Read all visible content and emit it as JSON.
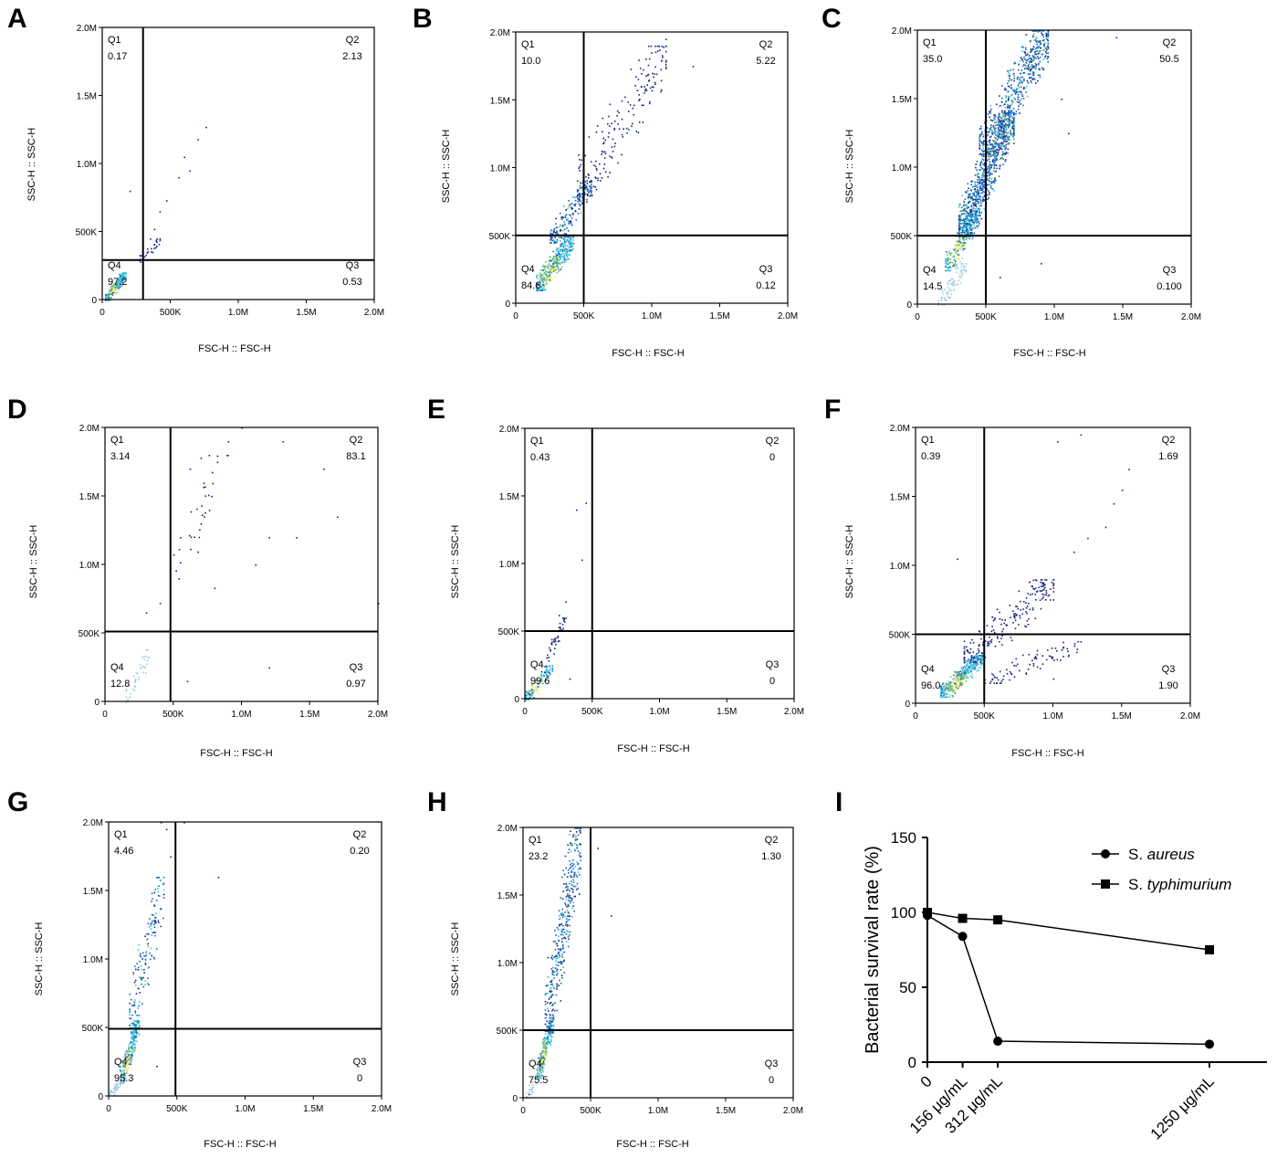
{
  "chart_data": [
    {
      "id": "A",
      "type": "scatter",
      "panel_label": "A",
      "xlabel": "FSC-H :: FSC-H",
      "ylabel": "SSC-H :: SSC-H",
      "xlim": [
        0,
        2000000
      ],
      "ylim": [
        0,
        2000000
      ],
      "x_ticks": [
        0,
        500000,
        1000000,
        1500000,
        2000000
      ],
      "x_tick_labels": [
        "0",
        "500K",
        "1.0M",
        "1.5M",
        "2.0M"
      ],
      "y_ticks": [
        0,
        500000,
        1000000,
        1500000,
        2000000
      ],
      "y_tick_labels": [
        "0",
        "500K",
        "1.0M",
        "1.5M",
        "2.0M"
      ],
      "gate": {
        "x": 300000,
        "y": 290000
      },
      "quadrants": [
        {
          "name": "Q1",
          "value": "0.17",
          "pos": "top-left"
        },
        {
          "name": "Q2",
          "value": "2.13",
          "pos": "top-right"
        },
        {
          "name": "Q3",
          "value": "0.53",
          "pos": "bottom-right"
        },
        {
          "name": "Q4",
          "value": "97.2",
          "pos": "bottom-left"
        }
      ],
      "sparse_points": [
        [
          200000,
          800000
        ],
        [
          420000,
          650000
        ],
        [
          470000,
          730000
        ],
        [
          560000,
          900000
        ],
        [
          600000,
          1050000
        ],
        [
          640000,
          950000
        ],
        [
          700000,
          1180000
        ],
        [
          760000,
          1270000
        ],
        [
          380000,
          520000
        ],
        [
          350000,
          450000
        ]
      ],
      "clusters": [
        {
          "x": [
            20000,
            170000
          ],
          "y": [
            0,
            200000
          ],
          "n": 220,
          "tone": "dense"
        },
        {
          "x": [
            260000,
            420000
          ],
          "y": [
            280000,
            450000
          ],
          "n": 25,
          "tone": "sparse"
        }
      ]
    },
    {
      "id": "B",
      "type": "scatter",
      "panel_label": "B",
      "xlabel": "FSC-H :: FSC-H",
      "ylabel": "SSC-H :: SSC-H",
      "xlim": [
        0,
        2000000
      ],
      "ylim": [
        0,
        2000000
      ],
      "x_ticks": [
        0,
        500000,
        1000000,
        1500000,
        2000000
      ],
      "x_tick_labels": [
        "0",
        "500K",
        "1.0M",
        "1.5M",
        "2.0M"
      ],
      "y_ticks": [
        0,
        500000,
        1000000,
        1500000,
        2000000
      ],
      "y_tick_labels": [
        "0",
        "500K",
        "1.0M",
        "1.5M",
        "2.0M"
      ],
      "gate": {
        "x": 500000,
        "y": 500000
      },
      "quadrants": [
        {
          "name": "Q1",
          "value": "10.0",
          "pos": "top-left"
        },
        {
          "name": "Q2",
          "value": "5.22",
          "pos": "top-right"
        },
        {
          "name": "Q3",
          "value": "0.12",
          "pos": "bottom-right"
        },
        {
          "name": "Q4",
          "value": "84.6",
          "pos": "bottom-left"
        }
      ],
      "sparse_points": [
        [
          1100000,
          1950000
        ],
        [
          1300000,
          1750000
        ],
        [
          1050000,
          1900000
        ],
        [
          900000,
          1500000
        ],
        [
          1000000,
          1700000
        ]
      ],
      "clusters": [
        {
          "x": [
            150000,
            420000
          ],
          "y": [
            100000,
            500000
          ],
          "n": 420,
          "tone": "dense"
        },
        {
          "x": [
            250000,
            550000
          ],
          "y": [
            450000,
            900000
          ],
          "n": 200,
          "tone": "mid"
        },
        {
          "x": [
            450000,
            1100000
          ],
          "y": [
            800000,
            1900000
          ],
          "n": 180,
          "tone": "sparse"
        }
      ]
    },
    {
      "id": "C",
      "type": "scatter",
      "panel_label": "C",
      "xlabel": "FSC-H :: FSC-H",
      "ylabel": "SSC-H :: SSC-H",
      "xlim": [
        0,
        2000000
      ],
      "ylim": [
        0,
        2000000
      ],
      "x_ticks": [
        0,
        500000,
        1000000,
        1500000,
        2000000
      ],
      "x_tick_labels": [
        "0",
        "500K",
        "1.0M",
        "1.5M",
        "2.0M"
      ],
      "y_ticks": [
        0,
        500000,
        1000000,
        1500000,
        2000000
      ],
      "y_tick_labels": [
        "0",
        "500K",
        "1.0M",
        "1.5M",
        "2.0M"
      ],
      "gate": {
        "x": 500000,
        "y": 500000
      },
      "quadrants": [
        {
          "name": "Q1",
          "value": "35.0",
          "pos": "top-left"
        },
        {
          "name": "Q2",
          "value": "50.5",
          "pos": "top-right"
        },
        {
          "name": "Q3",
          "value": "0.100",
          "pos": "bottom-right"
        },
        {
          "name": "Q4",
          "value": "14.5",
          "pos": "bottom-left"
        }
      ],
      "sparse_points": [
        [
          1450000,
          1950000
        ],
        [
          1050000,
          1500000
        ],
        [
          1100000,
          1250000
        ],
        [
          600000,
          200000
        ],
        [
          900000,
          300000
        ]
      ],
      "clusters": [
        {
          "x": [
            200000,
            450000
          ],
          "y": [
            250000,
            700000
          ],
          "n": 300,
          "tone": "dense"
        },
        {
          "x": [
            300000,
            700000
          ],
          "y": [
            500000,
            1400000
          ],
          "n": 800,
          "tone": "mid"
        },
        {
          "x": [
            450000,
            950000
          ],
          "y": [
            1100000,
            2000000
          ],
          "n": 600,
          "tone": "mid"
        },
        {
          "x": [
            150000,
            350000
          ],
          "y": [
            0,
            300000
          ],
          "n": 80,
          "tone": "light"
        }
      ]
    },
    {
      "id": "D",
      "type": "scatter",
      "panel_label": "D",
      "xlabel": "FSC-H :: FSC-H",
      "ylabel": "SSC-H :: SSC-H",
      "xlim": [
        0,
        2000000
      ],
      "ylim": [
        0,
        2000000
      ],
      "x_ticks": [
        0,
        500000,
        1000000,
        1500000,
        2000000
      ],
      "x_tick_labels": [
        "0",
        "500K",
        "1.0M",
        "1.5M",
        "2.0M"
      ],
      "y_ticks": [
        0,
        500000,
        1000000,
        1500000,
        2000000
      ],
      "y_tick_labels": [
        "0",
        "500K",
        "1.0M",
        "1.5M",
        "2.0M"
      ],
      "gate": {
        "x": 480000,
        "y": 510000
      },
      "quadrants": [
        {
          "name": "Q1",
          "value": "3.14",
          "pos": "top-left"
        },
        {
          "name": "Q2",
          "value": "83.1",
          "pos": "top-right"
        },
        {
          "name": "Q3",
          "value": "0.97",
          "pos": "bottom-right"
        },
        {
          "name": "Q4",
          "value": "12.8",
          "pos": "bottom-left"
        }
      ],
      "sparse_points": [
        [
          620000,
          1700000
        ],
        [
          700000,
          1780000
        ],
        [
          760000,
          1800000
        ],
        [
          820000,
          1750000
        ],
        [
          900000,
          1900000
        ],
        [
          1000000,
          2000000
        ],
        [
          1300000,
          1900000
        ],
        [
          1600000,
          1700000
        ],
        [
          1200000,
          1200000
        ],
        [
          800000,
          830000
        ],
        [
          1100000,
          1000000
        ],
        [
          2000000,
          720000
        ],
        [
          1200000,
          250000
        ],
        [
          600000,
          150000
        ],
        [
          400000,
          720000
        ],
        [
          300000,
          650000
        ],
        [
          550000,
          1200000
        ],
        [
          700000,
          1300000
        ],
        [
          1400000,
          1200000
        ],
        [
          1700000,
          1350000
        ]
      ],
      "clusters": [
        {
          "x": [
            150000,
            330000
          ],
          "y": [
            0,
            380000
          ],
          "n": 40,
          "tone": "light"
        },
        {
          "x": [
            500000,
            900000
          ],
          "y": [
            900000,
            1800000
          ],
          "n": 30,
          "tone": "sparse"
        }
      ]
    },
    {
      "id": "E",
      "type": "scatter",
      "panel_label": "E",
      "xlabel": "FSC-H :: FSC-H",
      "ylabel": "SSC-H :: SSC-H",
      "xlim": [
        0,
        2000000
      ],
      "ylim": [
        0,
        2000000
      ],
      "x_ticks": [
        0,
        500000,
        1000000,
        1500000,
        2000000
      ],
      "x_tick_labels": [
        "0",
        "500K",
        "1.0M",
        "1.5M",
        "2.0M"
      ],
      "y_ticks": [
        0,
        500000,
        1000000,
        1500000,
        2000000
      ],
      "y_tick_labels": [
        "0",
        "500K",
        "1.0M",
        "1.5M",
        "2.0M"
      ],
      "gate": {
        "x": 500000,
        "y": 500000
      },
      "quadrants": [
        {
          "name": "Q1",
          "value": "0.43",
          "pos": "top-left"
        },
        {
          "name": "Q2",
          "value": "0",
          "pos": "top-right"
        },
        {
          "name": "Q3",
          "value": "0",
          "pos": "bottom-right"
        },
        {
          "name": "Q4",
          "value": "99.6",
          "pos": "bottom-left"
        }
      ],
      "sparse_points": [
        [
          450000,
          1450000
        ],
        [
          380000,
          1400000
        ],
        [
          420000,
          1030000
        ],
        [
          300000,
          720000
        ],
        [
          250000,
          620000
        ],
        [
          330000,
          150000
        ]
      ],
      "clusters": [
        {
          "x": [
            0,
            200000
          ],
          "y": [
            0,
            250000
          ],
          "n": 120,
          "tone": "dense"
        },
        {
          "x": [
            120000,
            300000
          ],
          "y": [
            200000,
            600000
          ],
          "n": 40,
          "tone": "sparse"
        }
      ]
    },
    {
      "id": "F",
      "type": "scatter",
      "panel_label": "F",
      "xlabel": "FSC-H :: FSC-H",
      "ylabel": "SSC-H :: SSC-H",
      "xlim": [
        0,
        2000000
      ],
      "ylim": [
        0,
        2000000
      ],
      "x_ticks": [
        0,
        500000,
        1000000,
        1500000,
        2000000
      ],
      "x_tick_labels": [
        "0",
        "500K",
        "1.0M",
        "1.5M",
        "2.0M"
      ],
      "y_ticks": [
        0,
        500000,
        1000000,
        1500000,
        2000000
      ],
      "y_tick_labels": [
        "0",
        "500K",
        "1.0M",
        "1.5M",
        "2.0M"
      ],
      "gate": {
        "x": 500000,
        "y": 500000
      },
      "quadrants": [
        {
          "name": "Q1",
          "value": "0.39",
          "pos": "top-left"
        },
        {
          "name": "Q2",
          "value": "1.69",
          "pos": "top-right"
        },
        {
          "name": "Q3",
          "value": "1.90",
          "pos": "bottom-right"
        },
        {
          "name": "Q4",
          "value": "96.0",
          "pos": "bottom-left"
        }
      ],
      "sparse_points": [
        [
          1550000,
          1700000
        ],
        [
          1500000,
          1550000
        ],
        [
          1440000,
          1450000
        ],
        [
          1380000,
          1280000
        ],
        [
          1250000,
          1200000
        ],
        [
          1150000,
          1100000
        ],
        [
          1030000,
          1900000
        ],
        [
          1200000,
          1950000
        ],
        [
          300000,
          1050000
        ],
        [
          700000,
          300000
        ],
        [
          1000000,
          180000
        ],
        [
          1100000,
          400000
        ]
      ],
      "clusters": [
        {
          "x": [
            180000,
            480000
          ],
          "y": [
            50000,
            350000
          ],
          "n": 450,
          "tone": "dense"
        },
        {
          "x": [
            350000,
            1000000
          ],
          "y": [
            300000,
            900000
          ],
          "n": 200,
          "tone": "sparse"
        },
        {
          "x": [
            500000,
            1200000
          ],
          "y": [
            150000,
            450000
          ],
          "n": 80,
          "tone": "sparse"
        }
      ]
    },
    {
      "id": "G",
      "type": "scatter",
      "panel_label": "G",
      "xlabel": "FSC-H :: FSC-H",
      "ylabel": "SSC-H :: SSC-H",
      "xlim": [
        0,
        2000000
      ],
      "ylim": [
        0,
        2000000
      ],
      "x_ticks": [
        0,
        500000,
        1000000,
        1500000,
        2000000
      ],
      "x_tick_labels": [
        "0",
        "500K",
        "1.0M",
        "1.5M",
        "2.0M"
      ],
      "y_ticks": [
        0,
        500000,
        1000000,
        1500000,
        2000000
      ],
      "y_tick_labels": [
        "0",
        "500K",
        "1.0M",
        "1.5M",
        "2.0M"
      ],
      "gate": {
        "x": 490000,
        "y": 490000
      },
      "quadrants": [
        {
          "name": "Q1",
          "value": "4.46",
          "pos": "top-left"
        },
        {
          "name": "Q2",
          "value": "0.20",
          "pos": "top-right"
        },
        {
          "name": "Q3",
          "value": "0",
          "pos": "bottom-right"
        },
        {
          "name": "Q4",
          "value": "95.3",
          "pos": "bottom-left"
        }
      ],
      "sparse_points": [
        [
          550000,
          2000000
        ],
        [
          800000,
          1600000
        ],
        [
          450000,
          1750000
        ],
        [
          380000,
          2000000
        ],
        [
          420000,
          1950000
        ],
        [
          350000,
          220000
        ]
      ],
      "clusters": [
        {
          "x": [
            80000,
            220000
          ],
          "y": [
            100000,
            550000
          ],
          "n": 250,
          "tone": "dense"
        },
        {
          "x": [
            150000,
            400000
          ],
          "y": [
            500000,
            1600000
          ],
          "n": 160,
          "tone": "mid"
        },
        {
          "x": [
            0,
            120000
          ],
          "y": [
            0,
            150000
          ],
          "n": 50,
          "tone": "light"
        }
      ]
    },
    {
      "id": "H",
      "type": "scatter",
      "panel_label": "H",
      "xlabel": "FSC-H :: FSC-H",
      "ylabel": "SSC-H :: SSC-H",
      "xlim": [
        0,
        2000000
      ],
      "ylim": [
        0,
        2000000
      ],
      "x_ticks": [
        0,
        500000,
        1000000,
        1500000,
        2000000
      ],
      "x_tick_labels": [
        "0",
        "500K",
        "1.0M",
        "1.5M",
        "2.0M"
      ],
      "y_ticks": [
        0,
        500000,
        1000000,
        1500000,
        2000000
      ],
      "y_tick_labels": [
        "0",
        "500K",
        "1.0M",
        "1.5M",
        "2.0M"
      ],
      "gate": {
        "x": 500000,
        "y": 500000
      },
      "quadrants": [
        {
          "name": "Q1",
          "value": "23.2",
          "pos": "top-left"
        },
        {
          "name": "Q2",
          "value": "1.30",
          "pos": "top-right"
        },
        {
          "name": "Q3",
          "value": "0",
          "pos": "bottom-right"
        },
        {
          "name": "Q4",
          "value": "75.5",
          "pos": "bottom-left"
        }
      ],
      "sparse_points": [
        [
          650000,
          1350000
        ],
        [
          550000,
          1850000
        ],
        [
          420000,
          1700000
        ],
        [
          40000,
          30000
        ]
      ],
      "clusters": [
        {
          "x": [
            100000,
            220000
          ],
          "y": [
            150000,
            600000
          ],
          "n": 280,
          "tone": "dense"
        },
        {
          "x": [
            160000,
            420000
          ],
          "y": [
            500000,
            2000000
          ],
          "n": 380,
          "tone": "mid"
        },
        {
          "x": [
            20000,
            150000
          ],
          "y": [
            0,
            250000
          ],
          "n": 40,
          "tone": "light"
        }
      ]
    },
    {
      "id": "I",
      "type": "line",
      "panel_label": "I",
      "ylabel": "Bacterial survival rate (%)",
      "categories": [
        "0",
        "156 μg/mL",
        "312 μg/mL",
        "1250 μg/mL"
      ],
      "x": [
        0,
        156,
        312,
        1250
      ],
      "ylim": [
        0,
        150
      ],
      "y_ticks": [
        0,
        50,
        100,
        150
      ],
      "series": [
        {
          "name": "S. aureus",
          "legend_prefix": "S. ",
          "legend_italic": "aureus",
          "marker": "circle",
          "values": [
            98,
            84,
            14,
            12
          ]
        },
        {
          "name": "S. typhimurium",
          "legend_prefix": "S. ",
          "legend_italic": "typhimurium",
          "marker": "square",
          "values": [
            100,
            96,
            95,
            75
          ]
        }
      ],
      "legend_position": "top-right"
    }
  ],
  "colors": {
    "axis": "#000000",
    "gate": "#000000",
    "dot_sparse": "#1a237e",
    "dot_mid": "#1565c0",
    "dot_dense_cyan": "#26c6da",
    "dot_dense_green": "#66bb6a",
    "dot_dense_yellow": "#ffee58",
    "dot_light": "#9ecae1"
  }
}
